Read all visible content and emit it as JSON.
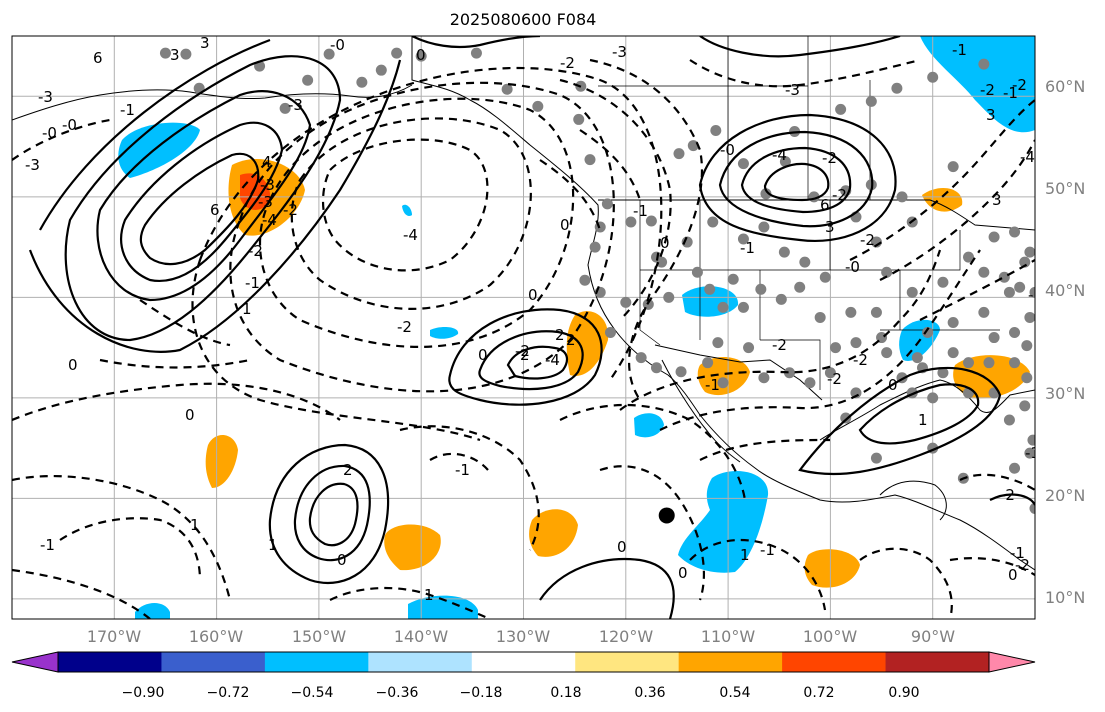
{
  "title": "2025080600 F084",
  "map": {
    "lon_range": [
      -180,
      -80
    ],
    "lat_range": [
      8,
      66
    ],
    "grid": true,
    "lon_ticks": [
      -170,
      -160,
      -150,
      -140,
      -130,
      -120,
      -110,
      -100,
      -90
    ],
    "lat_ticks": [
      10,
      20,
      30,
      40,
      50,
      60
    ],
    "lon_labels": [
      "170°W",
      "160°W",
      "150°W",
      "140°W",
      "130°W",
      "120°W",
      "110°W",
      "100°W",
      "90°W"
    ],
    "lat_labels": [
      "10°N",
      "20°N",
      "30°N",
      "40°N",
      "50°N",
      "60°N"
    ],
    "marker": {
      "lon": -116,
      "lat": 18.3,
      "color": "#000000"
    },
    "station_color": "#808080",
    "stations": [
      [
        -165.0,
        64.3
      ],
      [
        -163.0,
        64.2
      ],
      [
        -161.7,
        60.8
      ],
      [
        -155.8,
        63.0
      ],
      [
        -153.3,
        58.8
      ],
      [
        -151.1,
        61.6
      ],
      [
        -149.0,
        64.2
      ],
      [
        -145.8,
        61.4
      ],
      [
        -143.9,
        62.6
      ],
      [
        -142.4,
        64.3
      ],
      [
        -140.0,
        64.0
      ],
      [
        -134.6,
        64.3
      ],
      [
        -131.6,
        60.7
      ],
      [
        -128.6,
        59.0
      ],
      [
        -124.4,
        61.0
      ],
      [
        -124.6,
        57.7
      ],
      [
        -123.5,
        53.7
      ],
      [
        -121.8,
        49.3
      ],
      [
        -117.0,
        44.0
      ],
      [
        -114.8,
        54.3
      ],
      [
        -113.4,
        55.1
      ],
      [
        -111.2,
        56.6
      ],
      [
        -108.5,
        53.3
      ],
      [
        -106.3,
        50.3
      ],
      [
        -101.6,
        50.0
      ],
      [
        -104.4,
        53.5
      ],
      [
        -103.5,
        56.5
      ],
      [
        -99.0,
        58.7
      ],
      [
        -96.0,
        59.5
      ],
      [
        -93.5,
        60.8
      ],
      [
        -90.0,
        61.9
      ],
      [
        -85.0,
        63.2
      ],
      [
        -88.0,
        53.0
      ],
      [
        -98.5,
        50.6
      ],
      [
        -97.5,
        48.0
      ],
      [
        -96.0,
        51.2
      ],
      [
        -93.0,
        50.0
      ],
      [
        -92.0,
        47.5
      ],
      [
        -95.5,
        45.5
      ],
      [
        -94.5,
        42.5
      ],
      [
        -92.0,
        40.5
      ],
      [
        -89.0,
        41.5
      ],
      [
        -85.0,
        42.5
      ],
      [
        -86.5,
        44.0
      ],
      [
        -84.0,
        46.0
      ],
      [
        -82.0,
        46.5
      ],
      [
        -81.0,
        43.5
      ],
      [
        -82.5,
        40.5
      ],
      [
        -85.0,
        38.5
      ],
      [
        -88.0,
        37.5
      ],
      [
        -90.5,
        36.5
      ],
      [
        -88.0,
        34.5
      ],
      [
        -89.0,
        32.5
      ],
      [
        -91.0,
        33.0
      ],
      [
        -93.0,
        32.0
      ],
      [
        -94.5,
        34.5
      ],
      [
        -97.5,
        35.5
      ],
      [
        -99.5,
        35.0
      ],
      [
        -97.5,
        30.5
      ],
      [
        -98.5,
        28.0
      ],
      [
        -100.0,
        32.5
      ],
      [
        -102.0,
        31.5
      ],
      [
        -104.0,
        32.5
      ],
      [
        -106.5,
        32.0
      ],
      [
        -108.0,
        35.0
      ],
      [
        -110.5,
        31.5
      ],
      [
        -111.0,
        35.5
      ],
      [
        -112.0,
        33.5
      ],
      [
        -114.6,
        32.6
      ],
      [
        -117.0,
        33.0
      ],
      [
        -118.5,
        34.0
      ],
      [
        -121.5,
        36.5
      ],
      [
        -122.5,
        40.5
      ],
      [
        -124.0,
        41.7
      ],
      [
        -123.0,
        45.0
      ],
      [
        -122.5,
        47.0
      ],
      [
        -119.5,
        47.5
      ],
      [
        -117.5,
        47.6
      ],
      [
        -116.5,
        43.5
      ],
      [
        -114.0,
        45.5
      ],
      [
        -111.5,
        47.5
      ],
      [
        -108.5,
        45.8
      ],
      [
        -106.5,
        47.0
      ],
      [
        -104.5,
        44.5
      ],
      [
        -102.5,
        43.5
      ],
      [
        -100.5,
        42.0
      ],
      [
        -103.0,
        41.0
      ],
      [
        -106.8,
        40.8
      ],
      [
        -109.5,
        41.8
      ],
      [
        -111.8,
        40.8
      ],
      [
        -113.0,
        42.5
      ],
      [
        -115.8,
        40.0
      ],
      [
        -117.8,
        39.3
      ],
      [
        -120.0,
        39.5
      ],
      [
        -110.5,
        39.0
      ],
      [
        -108.5,
        39.0
      ],
      [
        -104.8,
        39.8
      ],
      [
        -101.0,
        38.0
      ],
      [
        -98.0,
        38.5
      ],
      [
        -95.5,
        38.5
      ],
      [
        -95.0,
        36.0
      ],
      [
        -91.5,
        34.0
      ],
      [
        -92.0,
        30.5
      ],
      [
        -90.0,
        30.0
      ],
      [
        -86.5,
        30.5
      ],
      [
        -84.0,
        30.5
      ],
      [
        -82.5,
        27.8
      ],
      [
        -81.0,
        29.2
      ],
      [
        -80.8,
        32.0
      ],
      [
        -82.0,
        33.5
      ],
      [
        -84.5,
        33.5
      ],
      [
        -86.5,
        33.5
      ],
      [
        -84.0,
        36.0
      ],
      [
        -82.0,
        36.5
      ],
      [
        -80.5,
        38.0
      ],
      [
        -81.5,
        41.0
      ],
      [
        -83.0,
        42.0
      ],
      [
        -80.5,
        44.5
      ],
      [
        -79.5,
        43.5
      ],
      [
        -80.0,
        40.5
      ],
      [
        -79.5,
        37.0
      ],
      [
        -80.8,
        35.2
      ],
      [
        -80.2,
        25.8
      ],
      [
        -80.5,
        24.5
      ],
      [
        -82.0,
        23.0
      ],
      [
        -80.0,
        19.0
      ],
      [
        -95.5,
        24.0
      ],
      [
        -87.0,
        22.0
      ],
      [
        -90.0,
        25.0
      ]
    ],
    "precip_colors": {
      "pos1": "#ffa500",
      "pos2": "#ff4500",
      "neg1": "#00bfff"
    }
  },
  "colorbar": {
    "colors": [
      "#9932cc",
      "#00008b",
      "#3a5fcd",
      "#00bfff",
      "#aee3ff",
      "#ffffff",
      "#ffe680",
      "#ffa500",
      "#ff4500",
      "#b22222",
      "#ff88aa"
    ],
    "tick_labels": [
      "−0.90",
      "−0.72",
      "−0.54",
      "−0.36",
      "−0.18",
      "0.18",
      "0.36",
      "0.54",
      "0.72",
      "0.90"
    ],
    "extend": "both"
  },
  "contour_labels": [
    "6",
    "-0",
    "-2",
    "-0",
    "-3",
    "0",
    "-4",
    "-3",
    "-2",
    "-1",
    "0",
    "2",
    "-2",
    "0",
    "1",
    "-2",
    "3",
    "6",
    "-4",
    "3",
    "-4",
    "-2",
    "2",
    "-3",
    "-1",
    "-2",
    "-4",
    "-3",
    "-2",
    "-2",
    "-1",
    "0",
    "1",
    "1",
    "6",
    "4",
    "-4",
    "-2",
    "-3",
    "-1",
    "-2",
    "0",
    "-1",
    "-2",
    "-3",
    "-0",
    "-2",
    "0",
    "-1",
    "-2",
    "0",
    "1",
    "-1",
    "-0",
    "-1",
    "3",
    "-1",
    "-2",
    "0",
    "0",
    "0",
    "-1",
    "2",
    "-1",
    "-3",
    "-2",
    "3",
    "3",
    "1",
    "2",
    "0",
    "-1",
    "-1",
    "-0",
    "1",
    "0"
  ]
}
